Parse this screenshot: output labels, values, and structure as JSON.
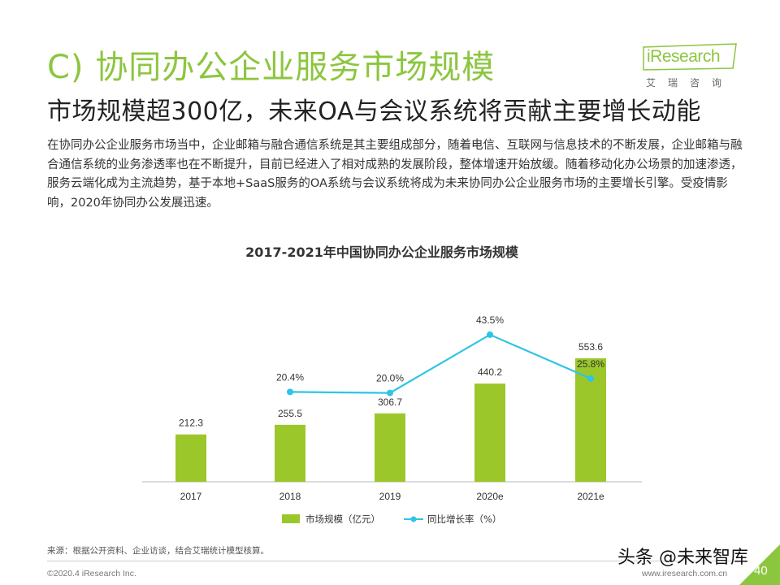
{
  "header": {
    "title": "C) 协同办公企业服务市场规模",
    "subtitle": "市场规模超300亿，未来OA与会议系统将贡献主要增长动能"
  },
  "logo": {
    "text": "iResearch",
    "cn": "艾瑞咨询"
  },
  "body": {
    "paragraph": "在协同办公企业服务市场当中，企业邮箱与融合通信系统是其主要组成部分，随着电信、互联网与信息技术的不断发展，企业邮箱与融合通信系统的业务渗透率也在不断提升，目前已经进入了相对成熟的发展阶段，整体增速开始放缓。随着移动化办公场景的加速渗透，服务云端化成为主流趋势，基于本地+SaaS服务的OA系统与会议系统将成为未来协同办公企业服务市场的主要增长引擎。受疫情影响，2020年协同办公发展迅速。"
  },
  "chart_data": {
    "type": "bar",
    "title": "2017-2021年中国协同办公企业服务市场规模",
    "categories": [
      "2017",
      "2018",
      "2019",
      "2020e",
      "2021e"
    ],
    "series": [
      {
        "name": "市场规模（亿元）",
        "type": "bar",
        "values": [
          212.3,
          255.5,
          306.7,
          440.2,
          553.6
        ],
        "labels": [
          "212.3",
          "255.5",
          "306.7",
          "440.2",
          "553.6"
        ],
        "color": "#9bc72a"
      },
      {
        "name": "同比增长率（%）",
        "type": "line",
        "values": [
          null,
          20.4,
          20.0,
          43.5,
          25.8
        ],
        "labels": [
          "",
          "20.4%",
          "20.0%",
          "43.5%",
          "25.8%"
        ],
        "color": "#2ec4e6"
      }
    ],
    "legend": "bottom"
  },
  "footer": {
    "source": "来源：根据公开资料、企业访谈，结合艾瑞统计模型核算。",
    "copyright": "©2020.4 iResearch Inc.",
    "website": "www.iresearch.com.cn",
    "page": "40",
    "watermark": "头条 @未来智库"
  }
}
